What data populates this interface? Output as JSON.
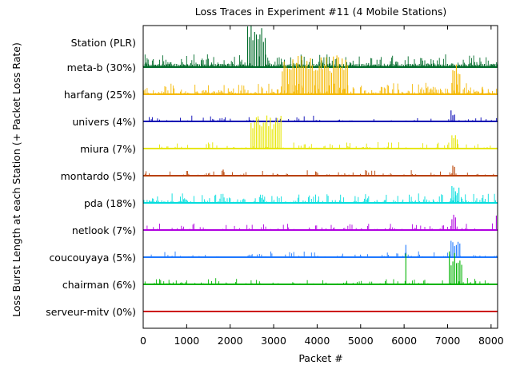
{
  "chart_data": {
    "type": "line",
    "title": "Loss Traces in Experiment #11 (4 Mobile Stations)",
    "xlabel": "Packet #",
    "ylabel": "Loss Burst Length at each Station (+ Packet Loss Rate)",
    "xlim": [
      0,
      8150
    ],
    "xticks": [
      0,
      1000,
      2000,
      3000,
      4000,
      5000,
      6000,
      7000,
      8000
    ],
    "grid": false,
    "legend": "none",
    "header_label": "Station (PLR)",
    "series": [
      {
        "name": "meta-b (30%)",
        "station": "meta-b",
        "plr": 30,
        "color": "#006b2a",
        "bursts": [
          {
            "from": 0,
            "to": 2400,
            "level": 0.3
          },
          {
            "from": 2400,
            "to": 2830,
            "level": 4.0
          },
          {
            "from": 2830,
            "to": 8150,
            "level": 0.3
          }
        ]
      },
      {
        "name": "harfang (25%)",
        "station": "harfang",
        "plr": 25,
        "color": "#f5b800",
        "bursts": [
          {
            "from": 3200,
            "to": 4700,
            "level": 3.5
          },
          {
            "from": 7120,
            "to": 7300,
            "level": 3.0
          },
          {
            "from": 7800,
            "to": 7840,
            "level": 1.0
          }
        ]
      },
      {
        "name": "univers (4%)",
        "station": "univers",
        "plr": 4,
        "color": "#0000b4",
        "bursts": [
          {
            "from": 7080,
            "to": 7200,
            "level": 1.0
          }
        ]
      },
      {
        "name": "miura (7%)",
        "station": "miura",
        "plr": 7,
        "color": "#e6e600",
        "bursts": [
          {
            "from": 2480,
            "to": 3180,
            "level": 3.0
          },
          {
            "from": 7100,
            "to": 7250,
            "level": 1.2
          }
        ]
      },
      {
        "name": "montardo (5%)",
        "station": "montardo",
        "plr": 5,
        "color": "#b84000",
        "bursts": [
          {
            "from": 1840,
            "to": 1860,
            "level": 1.0
          },
          {
            "from": 7120,
            "to": 7200,
            "level": 1.2
          }
        ]
      },
      {
        "name": "pda (18%)",
        "station": "pda",
        "plr": 18,
        "color": "#00dddd",
        "bursts": [
          {
            "from": 7100,
            "to": 7300,
            "level": 1.5
          }
        ]
      },
      {
        "name": "netlook (7%)",
        "station": "netlook",
        "plr": 7,
        "color": "#b000e0",
        "bursts": [
          {
            "from": 7100,
            "to": 7200,
            "level": 1.5
          },
          {
            "from": 8120,
            "to": 8150,
            "level": 1.5
          }
        ]
      },
      {
        "name": "coucouyaya (5%)",
        "station": "coucouyaya",
        "plr": 5,
        "color": "#1e78ff",
        "bursts": [
          {
            "from": 6040,
            "to": 6060,
            "level": 1.5
          },
          {
            "from": 7080,
            "to": 7300,
            "level": 1.5
          }
        ]
      },
      {
        "name": "chairman (6%)",
        "station": "chairman",
        "plr": 6,
        "color": "#00b400",
        "bursts": [
          {
            "from": 6040,
            "to": 6060,
            "level": 3.0
          },
          {
            "from": 7040,
            "to": 7350,
            "level": 3.0
          }
        ]
      },
      {
        "name": "serveur-mitv (0%)",
        "station": "serveur-mitv",
        "plr": 0,
        "color": "#cc0000",
        "bursts": []
      }
    ]
  }
}
